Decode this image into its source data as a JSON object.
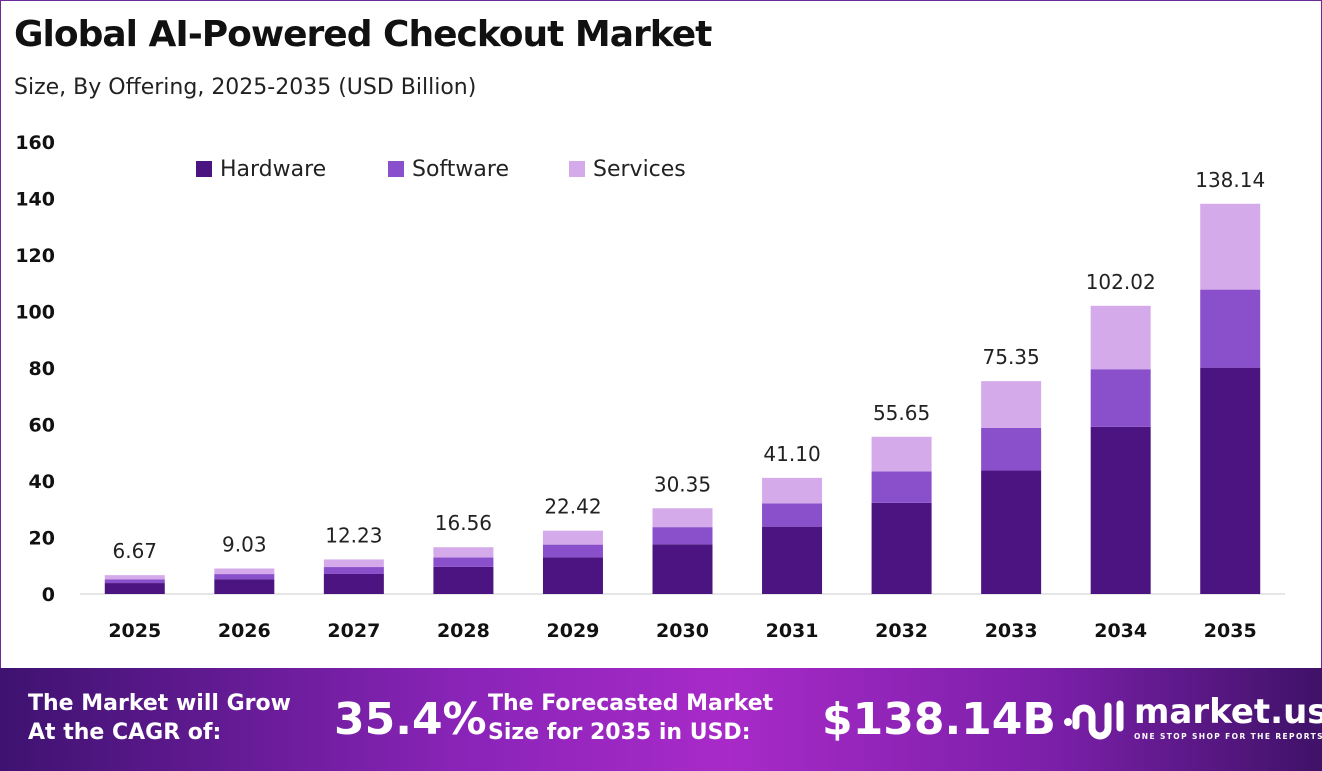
{
  "header": {
    "title": "Global AI-Powered Checkout Market",
    "subtitle": "Size, By Offering, 2025-2035 (USD Billion)"
  },
  "chart_data": {
    "type": "bar",
    "stacked": true,
    "title": "Global AI-Powered Checkout Market",
    "subtitle": "Size, By Offering, 2025-2035 (USD Billion)",
    "xlabel": "",
    "ylabel": "USD Billion",
    "ylim": [
      0,
      160
    ],
    "yticks": [
      0,
      20,
      40,
      60,
      80,
      100,
      120,
      140,
      160
    ],
    "categories": [
      "2025",
      "2026",
      "2027",
      "2028",
      "2029",
      "2030",
      "2031",
      "2032",
      "2033",
      "2034",
      "2035"
    ],
    "series": [
      {
        "name": "Hardware",
        "color": "#4b1480",
        "values": [
          3.87,
          5.24,
          7.09,
          9.6,
          13.0,
          17.6,
          23.84,
          32.28,
          43.7,
          59.17,
          80.12
        ]
      },
      {
        "name": "Software",
        "color": "#8a4fcb",
        "values": [
          1.33,
          1.81,
          2.45,
          3.31,
          4.48,
          6.07,
          8.22,
          11.13,
          15.07,
          20.4,
          27.63
        ]
      },
      {
        "name": "Services",
        "color": "#d4aaea",
        "values": [
          1.47,
          1.98,
          2.69,
          3.65,
          4.94,
          6.68,
          9.04,
          12.24,
          16.58,
          22.45,
          30.39
        ]
      }
    ],
    "totals": [
      "6.67",
      "9.03",
      "12.23",
      "16.56",
      "22.42",
      "30.35",
      "41.10",
      "55.65",
      "75.35",
      "102.02",
      "138.14"
    ],
    "legend_position": "top-left",
    "grid": false
  },
  "footer": {
    "cagr_label_1": "The Market will Grow",
    "cagr_label_2": "At the CAGR of:",
    "cagr_value": "35.4%",
    "forecast_label_1": "The Forecasted Market",
    "forecast_label_2": "Size for 2035 in USD:",
    "forecast_value": "$138.14B",
    "logo_name": "market.us",
    "logo_tagline": "ONE STOP SHOP FOR THE REPORTS"
  }
}
